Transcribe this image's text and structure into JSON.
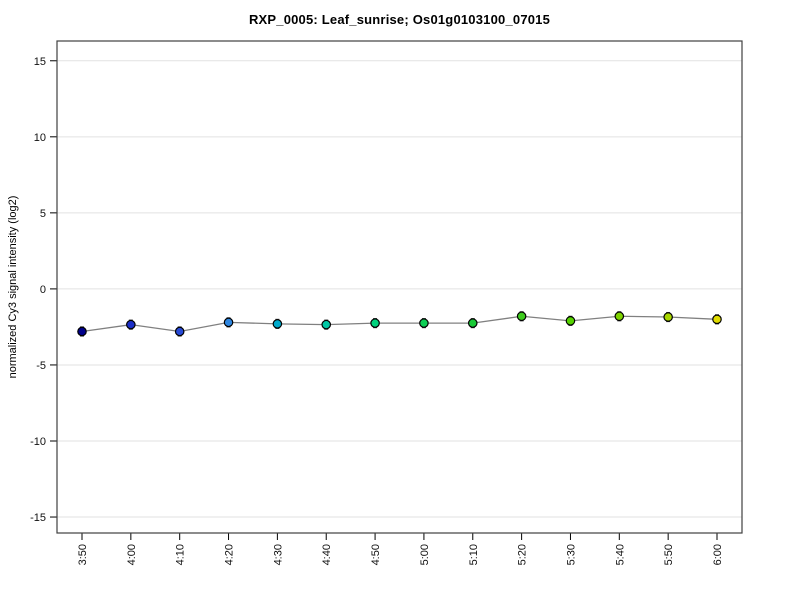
{
  "title": "RXP_0005: Leaf_sunrise; Os01g0103100_07015",
  "palette": {
    "background": "#ffffff",
    "plot_border": "#404040",
    "gridline": "#e2e2e2",
    "tick": "#000000",
    "tick_label": "#111111",
    "series_line": "#808080",
    "marker_outline": "#000000",
    "error_bar": "#303030"
  },
  "chart_data": {
    "type": "line",
    "title": "RXP_0005: Leaf_sunrise; Os01g0103100_07015",
    "xlabel": "",
    "ylabel": "normalized Cy3 signal intensity (log2)",
    "categories": [
      "3:50",
      "4:00",
      "4:10",
      "4:20",
      "4:30",
      "4:40",
      "4:50",
      "5:00",
      "5:10",
      "5:20",
      "5:30",
      "5:40",
      "5:50",
      "6:00"
    ],
    "values": [
      -2.8,
      -2.35,
      -2.8,
      -2.2,
      -2.3,
      -2.35,
      -2.25,
      -2.25,
      -2.25,
      -1.8,
      -2.1,
      -1.8,
      -1.85,
      -2.0
    ],
    "error_halfwidth": 0.3,
    "point_colors": [
      "#00008B",
      "#1C2FC8",
      "#2749D6",
      "#2E86E0",
      "#00AACC",
      "#00C8A5",
      "#00D27D",
      "#0DCE54",
      "#19C936",
      "#3ECC1E",
      "#55D200",
      "#7ED400",
      "#A8D600",
      "#E0DC00"
    ],
    "y_ticks": [
      15,
      10,
      5,
      0,
      -5,
      -10,
      -15
    ],
    "ylim": [
      -16.05,
      16.3
    ],
    "grid": "horizontal-only",
    "legend": "none",
    "x_tick_rotation": "vertical (reads bottom to top)",
    "marker": "filled circle, black outline, small error bars"
  }
}
